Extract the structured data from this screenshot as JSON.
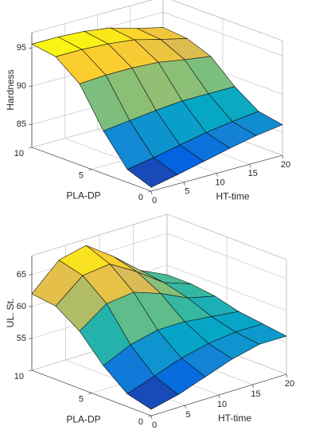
{
  "chart_data": [
    {
      "type": "surface",
      "xlabel": "HT-time",
      "ylabel": "PLA-DP",
      "zlabel": "Hardness",
      "x": [
        0,
        4,
        8,
        12,
        16,
        20
      ],
      "y": [
        0,
        2,
        4,
        6,
        8,
        10
      ],
      "z": [
        [
          82.5,
          83.2,
          84,
          84.8,
          85.5,
          86
        ],
        [
          83.7,
          84.3,
          85.0,
          85.7,
          86.2,
          86.6
        ],
        [
          87.6,
          88.0,
          88.4,
          88.7,
          88.7,
          88.7
        ],
        [
          92.6,
          92.8,
          92.8,
          92.6,
          92.0,
          91.5
        ],
        [
          95.0,
          95.0,
          94.8,
          94.4,
          93.5,
          92.7
        ],
        [
          95.5,
          95.5,
          95.3,
          94.8,
          93.8,
          93
        ]
      ],
      "xlim": [
        0,
        20
      ],
      "ylim": [
        0,
        10
      ],
      "zlim": [
        82,
        97
      ],
      "xticks": [
        0,
        5,
        10,
        15,
        20
      ],
      "yticks": [
        0,
        5,
        10
      ],
      "zticks": [
        85,
        90,
        95
      ],
      "colormap": [
        "#352a87",
        "#0363e1",
        "#1485d4",
        "#06a7c6",
        "#38b99e",
        "#92bf73",
        "#d9ba56",
        "#fcce2e",
        "#f9fb0e"
      ],
      "grid": true
    },
    {
      "type": "surface",
      "xlabel": "HT-time",
      "ylabel": "PLA-DP",
      "zlabel": "UL. St.",
      "x": [
        0,
        4,
        8,
        12,
        16,
        20
      ],
      "y": [
        0,
        2,
        4,
        6,
        8,
        10
      ],
      "z": [
        [
          51,
          52,
          53.5,
          55,
          56,
          56
        ],
        [
          52,
          53.5,
          55,
          56,
          56.5,
          56.5
        ],
        [
          55,
          57,
          58,
          58,
          57.5,
          57
        ],
        [
          59,
          62,
          62.5,
          61,
          59,
          58
        ],
        [
          61.5,
          65,
          65.5,
          63,
          60,
          58.5
        ],
        [
          62,
          66,
          67,
          64,
          60.5,
          58.5
        ]
      ],
      "xlim": [
        0,
        20
      ],
      "ylim": [
        0,
        10
      ],
      "zlim": [
        50,
        68
      ],
      "xticks": [
        0,
        5,
        10,
        15,
        20
      ],
      "yticks": [
        0,
        5,
        10
      ],
      "zticks": [
        55,
        60,
        65
      ],
      "colormap": [
        "#352a87",
        "#0363e1",
        "#1485d4",
        "#06a7c6",
        "#38b99e",
        "#92bf73",
        "#d9ba56",
        "#fcce2e",
        "#f9fb0e"
      ],
      "grid": true
    }
  ]
}
